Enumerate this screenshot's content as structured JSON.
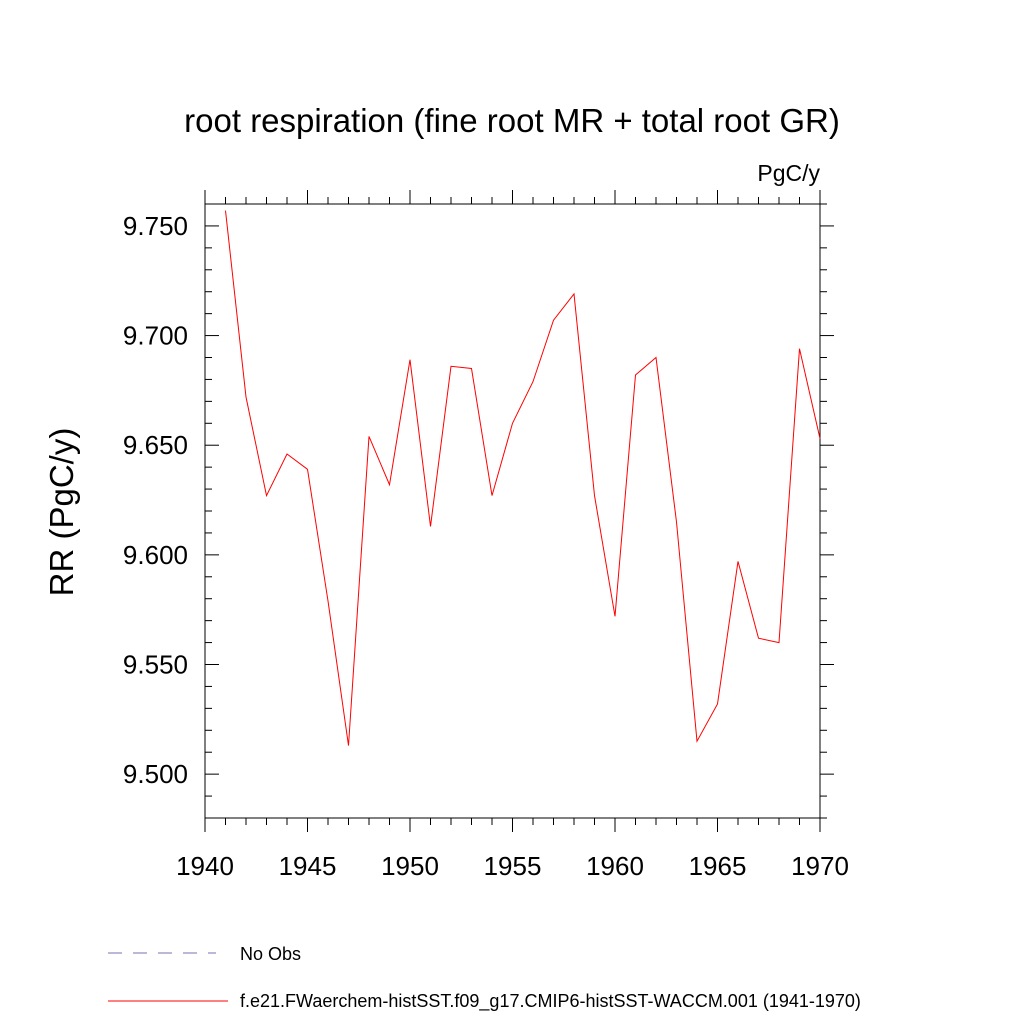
{
  "chart_data": {
    "type": "line",
    "title": "root respiration (fine root MR + total root GR)",
    "units_label": "PgC/y",
    "ylabel": "RR  (PgC/y)",
    "xlabel": "",
    "xlim": [
      1940,
      1970
    ],
    "ylim": [
      9.48,
      9.76
    ],
    "x_ticks": [
      1940,
      1945,
      1950,
      1955,
      1960,
      1965,
      1970
    ],
    "x_tick_labels": [
      "1940",
      "1945",
      "1950",
      "1955",
      "1960",
      "1965",
      "1970"
    ],
    "y_ticks": [
      9.5,
      9.55,
      9.6,
      9.65,
      9.7,
      9.75
    ],
    "y_tick_labels": [
      "9.500",
      "9.550",
      "9.600",
      "9.650",
      "9.700",
      "9.750"
    ],
    "grid": false,
    "legend_position": "bottom",
    "legend": [
      {
        "label": "No Obs",
        "color": "#7b6fb0",
        "style": "dashed"
      },
      {
        "label": "f.e21.FWaerchem-histSST.f09_g17.CMIP6-histSST-WACCM.001 (1941-1970)",
        "color": "#ff0000",
        "style": "solid"
      }
    ],
    "series": [
      {
        "name": "f.e21.FWaerchem-histSST.f09_g17.CMIP6-histSST-WACCM.001 (1941-1970)",
        "color": "#ff0000",
        "x": [
          1941,
          1942,
          1943,
          1944,
          1945,
          1946,
          1947,
          1948,
          1949,
          1950,
          1951,
          1952,
          1953,
          1954,
          1955,
          1956,
          1957,
          1958,
          1959,
          1960,
          1961,
          1962,
          1963,
          1964,
          1965,
          1966,
          1967,
          1968,
          1969,
          1970
        ],
        "values": [
          9.757,
          9.672,
          9.627,
          9.646,
          9.639,
          9.579,
          9.513,
          9.654,
          9.632,
          9.689,
          9.613,
          9.686,
          9.685,
          9.627,
          9.66,
          9.679,
          9.707,
          9.719,
          9.627,
          9.572,
          9.682,
          9.69,
          9.615,
          9.515,
          9.532,
          9.597,
          9.562,
          9.56,
          9.694,
          9.653
        ]
      }
    ]
  }
}
